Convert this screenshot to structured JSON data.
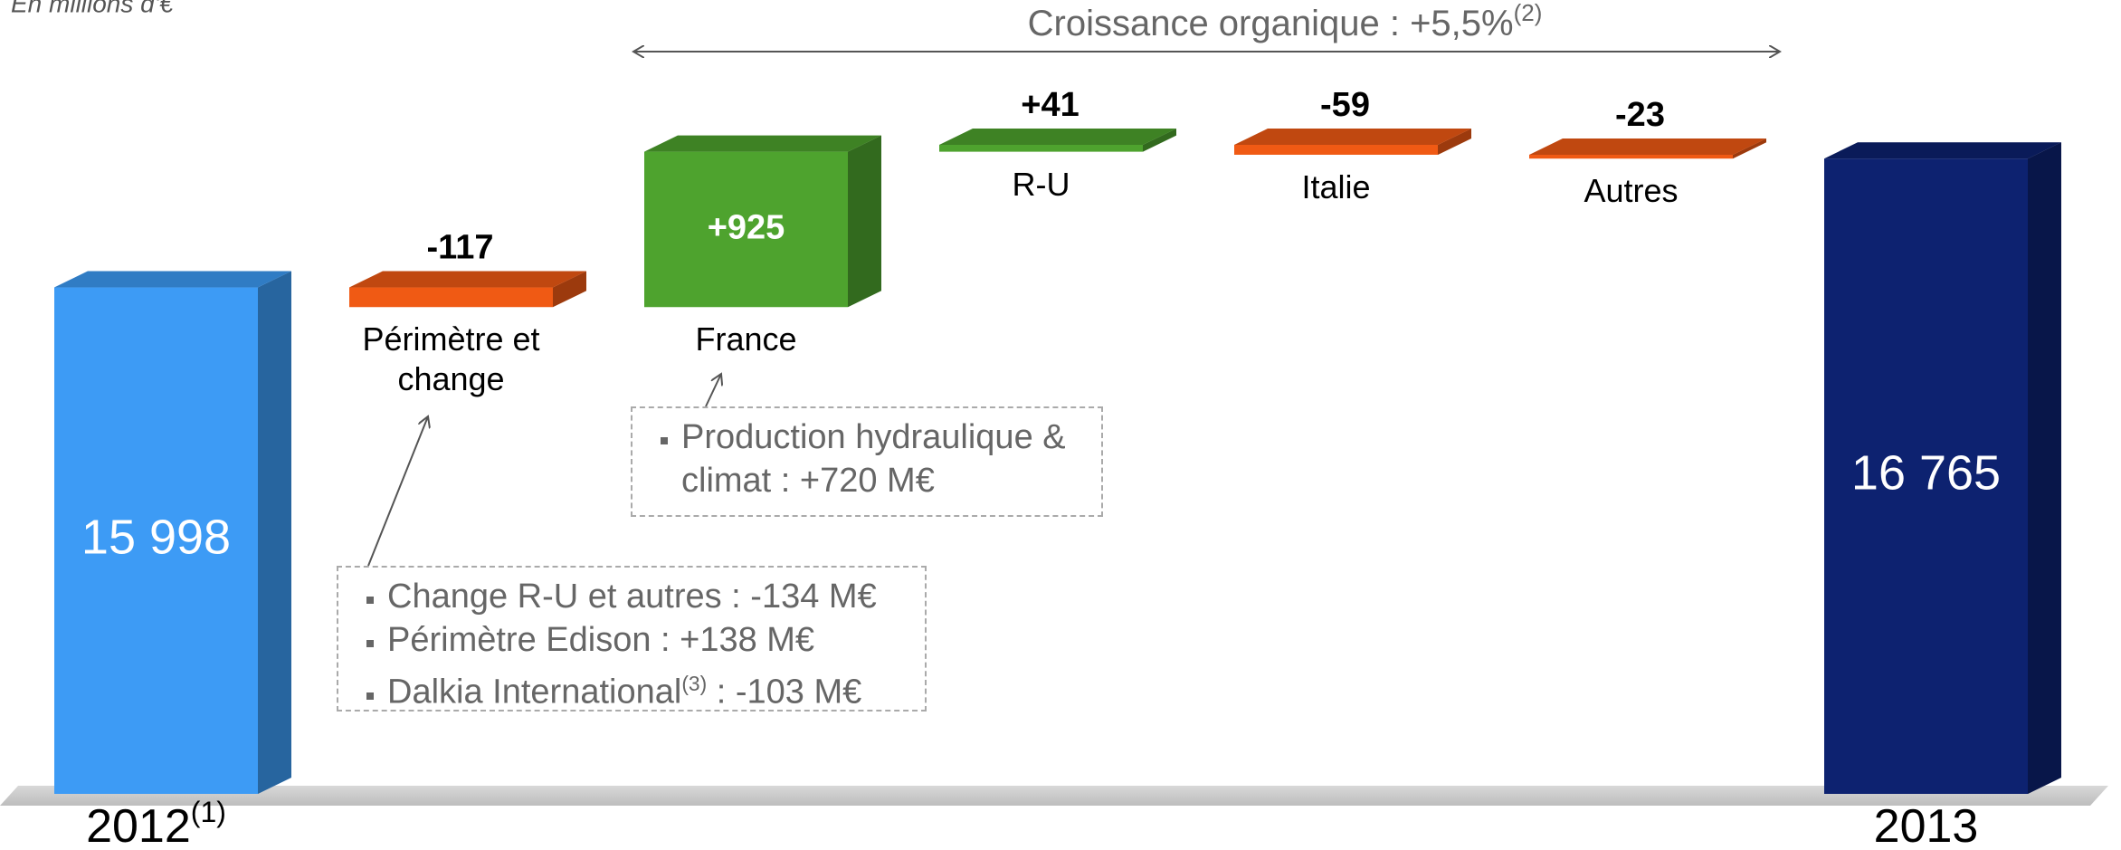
{
  "chart_data": {
    "type": "waterfall",
    "subtitle": "En millions d'€",
    "categories": [
      "2012",
      "Périmètre et change",
      "France",
      "R-U",
      "Italie",
      "Autres",
      "2013"
    ],
    "category_note": "(1)",
    "values": [
      15998,
      -117,
      925,
      41,
      -59,
      -23,
      16765
    ],
    "value_labels": [
      "15 998",
      "-117",
      "+925",
      "+41",
      "-59",
      "-23",
      "16 765"
    ],
    "kinds": [
      "total",
      "delta",
      "delta",
      "delta",
      "delta",
      "delta",
      "total"
    ],
    "total_colors": [
      "#3d9bf5",
      "#0d2270"
    ],
    "increase_color": "#4ea32e",
    "decrease_color": "#f05a14",
    "growth_label": "Croissance organique : +5,5%",
    "growth_note": "(2)",
    "boxes": [
      {
        "items": [
          {
            "text": "Production hydraulique & climat : +720 M€"
          }
        ]
      },
      {
        "items": [
          {
            "text": "Change R-U et autres : -134 M€"
          },
          {
            "text": "Périmètre Edison : +138 M€"
          },
          {
            "text": "Dalkia International",
            "note": "(3)",
            "suffix": ": -103 M€"
          }
        ]
      }
    ]
  }
}
